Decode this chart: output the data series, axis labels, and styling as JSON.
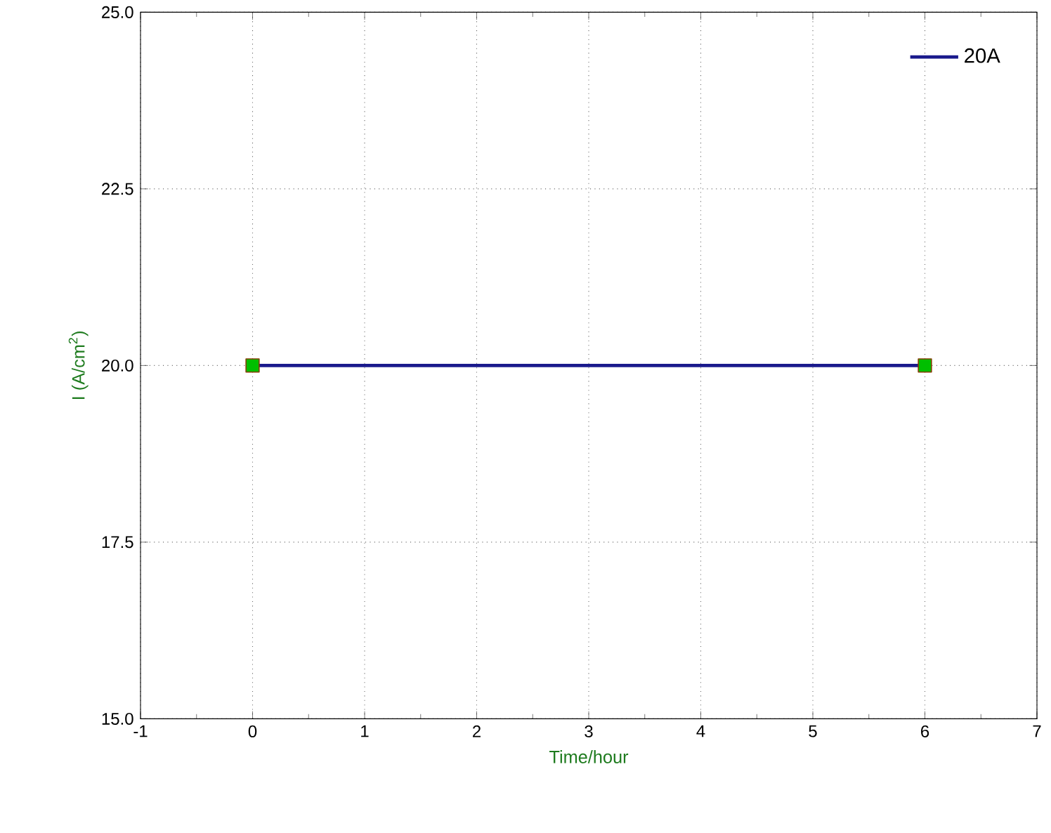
{
  "chart_data": {
    "type": "line",
    "xlabel": "Time/hour",
    "ylabel": "I (A/cm$^{2}$)",
    "x": [
      0,
      6
    ],
    "series": [
      {
        "name": "20A",
        "color": "#1a1a8c",
        "values": [
          20,
          20
        ]
      }
    ],
    "xlim": [
      -1,
      7
    ],
    "xticks": [
      -1,
      0,
      1,
      2,
      3,
      4,
      5,
      6,
      7
    ],
    "ylim": [
      15,
      25
    ],
    "yticks": [
      {
        "value": 15,
        "label": "15.0"
      },
      {
        "value": 17.5,
        "label": "17.5"
      },
      {
        "value": 20,
        "label": "20.0"
      },
      {
        "value": 22.5,
        "label": "22.5"
      },
      {
        "value": 25,
        "label": "25.0"
      }
    ],
    "grid": true,
    "legend": "top right",
    "marker": "square",
    "line_style": "solid"
  }
}
